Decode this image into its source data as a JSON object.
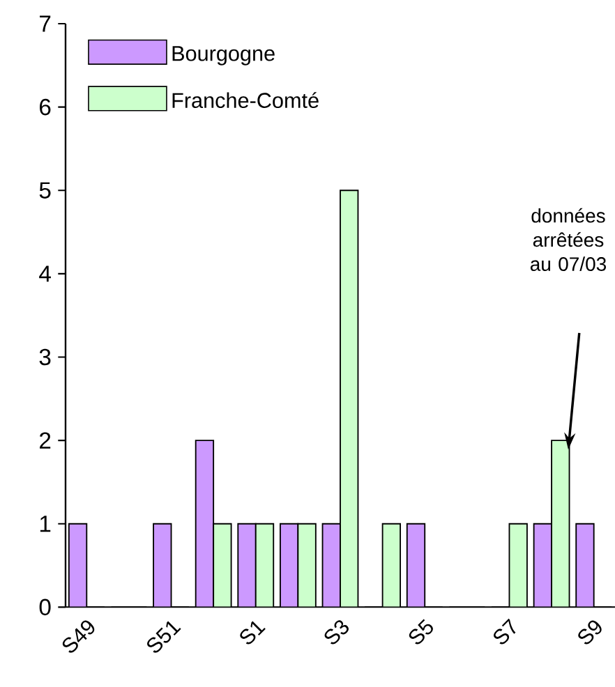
{
  "chart_data": {
    "type": "bar",
    "categories": [
      "S49",
      null,
      "S51",
      null,
      "S1",
      null,
      "S3",
      null,
      "S5",
      null,
      "S7",
      null,
      "S9"
    ],
    "series": [
      {
        "name": "Bourgogne",
        "color": "#cc99ff",
        "values": [
          1,
          0,
          1,
          2,
          1,
          1,
          1,
          0,
          1,
          0,
          0,
          1,
          1
        ]
      },
      {
        "name": "Franche-Comté",
        "color": "#ccffcc",
        "values": [
          0,
          0,
          0,
          1,
          1,
          1,
          5,
          1,
          0,
          0,
          1,
          2,
          0
        ]
      }
    ],
    "ylim": [
      0,
      7
    ],
    "yticks": [
      0,
      1,
      2,
      3,
      4,
      5,
      6,
      7
    ],
    "legend": "top left",
    "grid": false,
    "annotations": [
      "données arrêtées au 07/03"
    ]
  }
}
